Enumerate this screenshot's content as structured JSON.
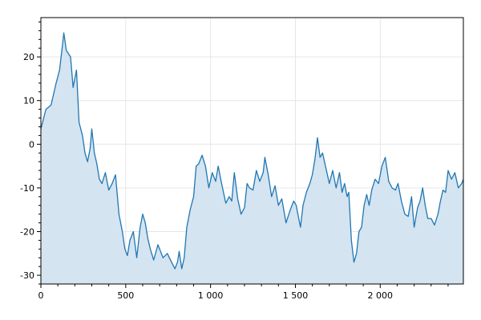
{
  "chart_data": {
    "type": "area",
    "title": "",
    "xlabel": "",
    "ylabel": "",
    "xlim": [
      0,
      2490
    ],
    "ylim": [
      -32,
      29
    ],
    "grid": true,
    "x_ticks": [
      0,
      500,
      1000,
      1500,
      2000
    ],
    "x_tick_labels": [
      "0",
      "500",
      "1 000",
      "1 500",
      "2 000"
    ],
    "y_ticks": [
      -30,
      -20,
      -10,
      0,
      10,
      20
    ],
    "y_tick_labels": [
      "-30",
      "-20",
      "-10",
      "0",
      "10",
      "20"
    ],
    "colors": {
      "line": "#1f77b4",
      "fill": "#d4e4f0",
      "grid": "#e6e6e6"
    },
    "series": [
      {
        "x": [
          0,
          30,
          60,
          90,
          110,
          125,
          135,
          150,
          175,
          190,
          210,
          225,
          245,
          260,
          275,
          290,
          300,
          315,
          330,
          345,
          360,
          380,
          400,
          420,
          440,
          460,
          480,
          495,
          510,
          525,
          545,
          565,
          585,
          600,
          615,
          630,
          645,
          665,
          690,
          720,
          745,
          770,
          790,
          805,
          815,
          830,
          845,
          860,
          880,
          900,
          915,
          930,
          950,
          970,
          990,
          1010,
          1030,
          1045,
          1065,
          1090,
          1110,
          1125,
          1140,
          1160,
          1180,
          1200,
          1215,
          1230,
          1250,
          1270,
          1290,
          1310,
          1320,
          1340,
          1360,
          1380,
          1400,
          1420,
          1445,
          1470,
          1490,
          1505,
          1515,
          1530,
          1545,
          1565,
          1585,
          1600,
          1615,
          1630,
          1645,
          1660,
          1680,
          1700,
          1720,
          1740,
          1760,
          1775,
          1790,
          1805,
          1815,
          1830,
          1845,
          1860,
          1875,
          1890,
          1905,
          1920,
          1935,
          1950,
          1970,
          1990,
          2010,
          2030,
          2050,
          2070,
          2090,
          2105,
          2125,
          2145,
          2165,
          2185,
          2200,
          2220,
          2235,
          2250,
          2265,
          2280,
          2300,
          2320,
          2340,
          2355,
          2370,
          2385,
          2400,
          2420,
          2440,
          2460,
          2480,
          2490
        ],
        "y": [
          3.5,
          8,
          9,
          14,
          17,
          22,
          25.5,
          21.5,
          20,
          13,
          17,
          5,
          2,
          -2,
          -4,
          -1,
          3.5,
          -2,
          -4.5,
          -8,
          -9,
          -6.5,
          -10.5,
          -9,
          -7,
          -16,
          -20,
          -24,
          -25.5,
          -22,
          -20,
          -26,
          -19,
          -16,
          -18,
          -21.5,
          -24,
          -26.5,
          -23,
          -26,
          -25,
          -27,
          -28.5,
          -27,
          -24.5,
          -28.5,
          -26,
          -19,
          -15,
          -12,
          -5,
          -4.5,
          -2.5,
          -5,
          -10,
          -6.5,
          -8.5,
          -5,
          -9,
          -13.5,
          -12,
          -13,
          -6.5,
          -12.5,
          -16,
          -14.5,
          -9,
          -10,
          -10.5,
          -6,
          -8.5,
          -6.5,
          -3,
          -7,
          -12,
          -9.5,
          -14,
          -12.5,
          -18,
          -15,
          -13,
          -14,
          -16,
          -19,
          -14,
          -11,
          -9,
          -7,
          -3.5,
          1.5,
          -3,
          -2,
          -5.5,
          -9,
          -6,
          -10,
          -6.5,
          -11,
          -9,
          -12,
          -11,
          -22,
          -27,
          -25,
          -20,
          -19,
          -14,
          -11.5,
          -14,
          -10.5,
          -8,
          -9,
          -5,
          -3,
          -8.5,
          -10,
          -10.5,
          -9,
          -13,
          -16,
          -16.5,
          -12,
          -19,
          -14.5,
          -13,
          -10,
          -14,
          -17,
          -17,
          -18.5,
          -16,
          -13,
          -10.5,
          -11,
          -6,
          -8,
          -6.5,
          -10,
          -9,
          -8
        ]
      }
    ]
  }
}
